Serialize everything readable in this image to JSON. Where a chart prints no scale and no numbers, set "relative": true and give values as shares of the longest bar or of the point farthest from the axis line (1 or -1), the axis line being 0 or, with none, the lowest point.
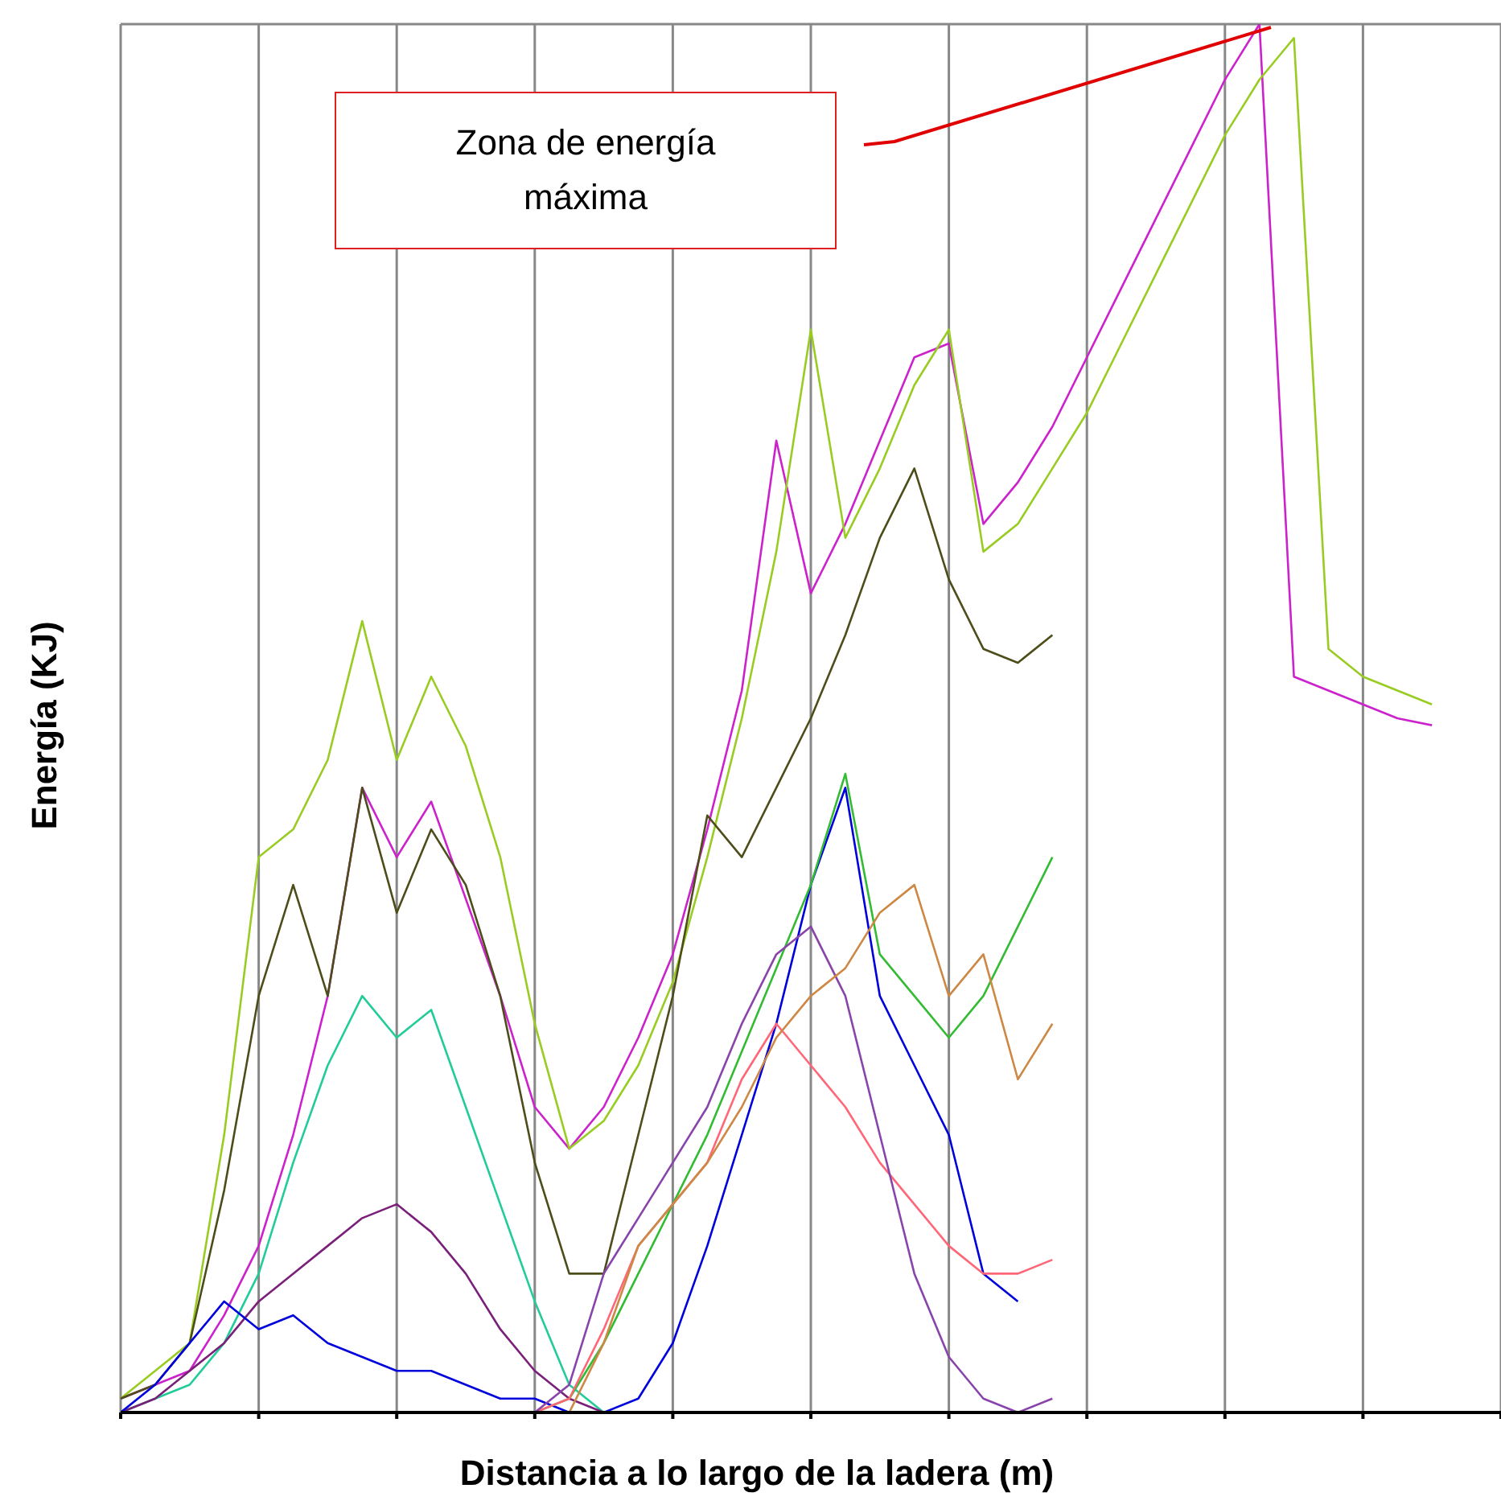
{
  "chart_data": {
    "type": "line",
    "relative": true,
    "xlabel": "Distancia a lo largo de la ladera (m)",
    "ylabel": "Energía (KJ)",
    "grid": true,
    "legend": false,
    "marker": "none",
    "line_style": "solid",
    "annotations": [
      "Zona de energía máxima"
    ],
    "categories": [
      null,
      null,
      null,
      null,
      null,
      null,
      null,
      null,
      null,
      null,
      null,
      null,
      null,
      null,
      null,
      null,
      null,
      null,
      null,
      null,
      null,
      null,
      null,
      null,
      null,
      null,
      null,
      null,
      null,
      null,
      null,
      null,
      null,
      null,
      null,
      null,
      null,
      null,
      null,
      null,
      null
    ],
    "series": [
      {
        "color": "#cc22cc",
        "values": [
          0.01,
          0.02,
          0.03,
          0.07,
          0.12,
          0.2,
          0.3,
          0.45,
          0.4,
          0.44,
          0.37,
          0.3,
          0.22,
          0.19,
          0.22,
          0.27,
          0.33,
          0.42,
          0.52,
          0.7,
          0.59,
          0.64,
          0.7,
          0.76,
          0.77,
          0.64,
          0.67,
          0.71,
          0.76,
          0.81,
          0.86,
          0.91,
          0.96,
          1,
          0.53,
          0.52,
          0.51,
          0.5,
          0.495,
          null,
          null
        ]
      },
      {
        "color": "#99cc22",
        "values": [
          0.01,
          0.03,
          0.05,
          0.2,
          0.4,
          0.42,
          0.47,
          0.57,
          0.47,
          0.53,
          0.48,
          0.4,
          0.28,
          0.19,
          0.21,
          0.25,
          0.31,
          0.4,
          0.5,
          0.62,
          0.78,
          0.63,
          0.68,
          0.74,
          0.78,
          0.62,
          0.64,
          0.68,
          0.72,
          0.77,
          0.82,
          0.87,
          0.92,
          0.96,
          0.99,
          0.55,
          0.53,
          0.52,
          0.51,
          null,
          null
        ]
      },
      {
        "color": "#4d4d1a",
        "values": [
          0.01,
          0.02,
          0.05,
          0.16,
          0.3,
          0.38,
          0.3,
          0.45,
          0.36,
          0.42,
          0.38,
          0.3,
          0.18,
          0.1,
          0.1,
          0.2,
          0.3,
          0.43,
          0.4,
          0.45,
          0.5,
          0.56,
          0.63,
          0.68,
          0.6,
          0.55,
          0.54,
          0.56,
          null,
          null,
          null,
          null,
          null,
          null,
          null,
          null,
          null,
          null,
          null,
          null,
          null
        ]
      },
      {
        "color": "#22cc99",
        "values": [
          0,
          0.01,
          0.02,
          0.05,
          0.1,
          0.18,
          0.25,
          0.3,
          0.27,
          0.29,
          0.22,
          0.15,
          0.08,
          0.02,
          0,
          null,
          null,
          null,
          null,
          null,
          null,
          null,
          null,
          null,
          null,
          null,
          null,
          null,
          null,
          null,
          null,
          null,
          null,
          null,
          null,
          null,
          null,
          null,
          null,
          null,
          null
        ]
      },
      {
        "color": "#7a1f7a",
        "values": [
          0,
          0.01,
          0.03,
          0.05,
          0.08,
          0.1,
          0.12,
          0.14,
          0.15,
          0.13,
          0.1,
          0.06,
          0.03,
          0.01,
          0,
          null,
          null,
          null,
          null,
          null,
          null,
          null,
          null,
          null,
          null,
          null,
          null,
          null,
          null,
          null,
          null,
          null,
          null,
          null,
          null,
          null,
          null,
          null,
          null,
          null,
          null
        ]
      },
      {
        "color": "#0000dd",
        "values": [
          0,
          0.02,
          0.05,
          0.08,
          0.06,
          0.07,
          0.05,
          0.04,
          0.03,
          0.03,
          0.02,
          0.01,
          0.01,
          0,
          0,
          0.01,
          0.05,
          0.12,
          0.2,
          0.28,
          0.38,
          0.45,
          0.3,
          0.25,
          0.2,
          0.1,
          0.08,
          null,
          null,
          null,
          null,
          null,
          null,
          null,
          null,
          null,
          null,
          null,
          null,
          null,
          null
        ]
      },
      {
        "color": "#33bb33",
        "values": [
          null,
          null,
          null,
          null,
          null,
          null,
          null,
          null,
          null,
          null,
          null,
          null,
          0,
          0.01,
          0.05,
          0.1,
          0.15,
          0.2,
          0.26,
          0.32,
          0.38,
          0.46,
          0.33,
          0.3,
          0.27,
          0.3,
          0.35,
          0.4,
          null,
          null,
          null,
          null,
          null,
          null,
          null,
          null,
          null,
          null,
          null,
          null,
          null
        ]
      },
      {
        "color": "#ff6677",
        "values": [
          null,
          null,
          null,
          null,
          null,
          null,
          null,
          null,
          null,
          null,
          null,
          null,
          0,
          0.01,
          0.06,
          0.12,
          0.15,
          0.18,
          0.24,
          0.28,
          0.25,
          0.22,
          0.18,
          0.15,
          0.12,
          0.1,
          0.1,
          0.11,
          null,
          null,
          null,
          null,
          null,
          null,
          null,
          null,
          null,
          null,
          null,
          null,
          null
        ]
      },
      {
        "color": "#8844aa",
        "values": [
          null,
          null,
          null,
          null,
          null,
          null,
          null,
          null,
          null,
          null,
          null,
          null,
          0,
          0.02,
          0.1,
          0.14,
          0.18,
          0.22,
          0.28,
          0.33,
          0.35,
          0.3,
          0.2,
          0.1,
          0.04,
          0.01,
          0,
          0.01,
          null,
          null,
          null,
          null,
          null,
          null,
          null,
          null,
          null,
          null,
          null,
          null,
          null
        ]
      },
      {
        "color": "#cc8844",
        "values": [
          null,
          null,
          null,
          null,
          null,
          null,
          null,
          null,
          null,
          null,
          null,
          null,
          null,
          0,
          0.05,
          0.12,
          0.15,
          0.18,
          0.22,
          0.27,
          0.3,
          0.32,
          0.36,
          0.38,
          0.3,
          0.33,
          0.24,
          0.28,
          null,
          null,
          null,
          null,
          null,
          null,
          null,
          null,
          null,
          null,
          null,
          null,
          null
        ]
      }
    ]
  }
}
